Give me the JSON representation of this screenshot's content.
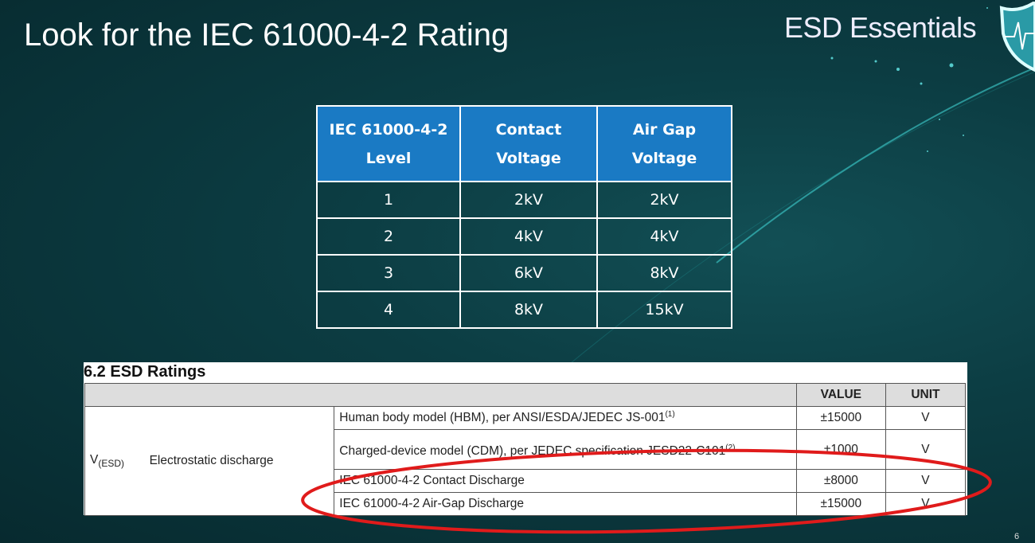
{
  "slide": {
    "title": "Look for the IEC 61000-4-2 Rating",
    "brand": "ESD Essentials",
    "page_number": "6"
  },
  "iec_table": {
    "headers": [
      [
        "IEC 61000-4-2",
        "Level"
      ],
      [
        "Contact",
        "Voltage"
      ],
      [
        "Air Gap",
        "Voltage"
      ]
    ],
    "rows": [
      [
        "1",
        "2kV",
        "2kV"
      ],
      [
        "2",
        "4kV",
        "4kV"
      ],
      [
        "3",
        "6kV",
        "8kV"
      ],
      [
        "4",
        "8kV",
        "15kV"
      ]
    ],
    "header_color": "#1a7ac4"
  },
  "esd_ratings": {
    "heading": "6.2   ESD Ratings",
    "col_value": "VALUE",
    "col_unit": "UNIT",
    "symbol": "V",
    "symbol_sub": "(ESD)",
    "parameter": "Electrostatic discharge",
    "rows": [
      {
        "condition": "Human body model (HBM), per ANSI/ESDA/JEDEC JS-001",
        "note": "(1)",
        "value": "±15000",
        "unit": "V"
      },
      {
        "condition": "Charged-device model (CDM), per JEDEC specification JESD22-C101",
        "note": "(2)",
        "value": "±1000",
        "unit": "V"
      },
      {
        "condition": "IEC 61000-4-2 Contact Discharge",
        "note": "",
        "value": "±8000",
        "unit": "V"
      },
      {
        "condition": "IEC 61000-4-2 Air-Gap Discharge",
        "note": "",
        "value": "±15000",
        "unit": "V"
      }
    ],
    "highlight_color": "#e01b1b"
  }
}
